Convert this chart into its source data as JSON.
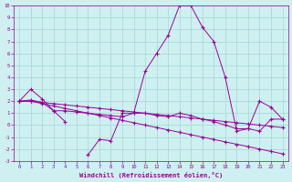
{
  "xlabel": "Windchill (Refroidissement éolien,°C)",
  "x_values": [
    0,
    1,
    2,
    3,
    4,
    5,
    6,
    7,
    8,
    9,
    10,
    11,
    12,
    13,
    14,
    15,
    16,
    17,
    18,
    19,
    20,
    21,
    22,
    23
  ],
  "line1_y": [
    2.0,
    3.0,
    2.2,
    1.2,
    0.3,
    null,
    -2.5,
    -1.2,
    -1.3,
    1.0,
    1.0,
    4.5,
    6.0,
    7.5,
    10.0,
    10.0,
    8.2,
    7.0,
    4.0,
    -0.5,
    -0.3,
    2.0,
    1.5,
    0.5
  ],
  "line2_y": [
    2.0,
    2.1,
    1.9,
    1.2,
    1.2,
    1.1,
    1.0,
    0.9,
    0.8,
    0.7,
    1.0,
    1.0,
    0.8,
    0.7,
    1.0,
    0.8,
    0.5,
    0.3,
    0.0,
    -0.3,
    -0.3,
    -0.5,
    0.5,
    0.5
  ],
  "line3_y": [
    2.0,
    2.0,
    1.8,
    1.6,
    1.4,
    1.2,
    1.0,
    0.8,
    0.6,
    0.4,
    0.2,
    0.0,
    -0.2,
    -0.4,
    -0.6,
    -0.8,
    -1.0,
    -1.2,
    -1.4,
    -1.6,
    -1.8,
    -2.0,
    -2.2,
    -2.4
  ],
  "line4_y": [
    2.0,
    2.0,
    1.9,
    1.8,
    1.7,
    1.6,
    1.5,
    1.4,
    1.3,
    1.2,
    1.1,
    1.0,
    0.9,
    0.8,
    0.7,
    0.6,
    0.5,
    0.4,
    0.3,
    0.2,
    0.1,
    0.0,
    -0.1,
    -0.2
  ],
  "color": "#990099",
  "bg_color": "#cff0f0",
  "grid_color": "#a8dada",
  "ylim": [
    -3,
    10
  ],
  "xlim": [
    -0.5,
    23.5
  ],
  "yticks": [
    -3,
    -2,
    -1,
    0,
    1,
    2,
    3,
    4,
    5,
    6,
    7,
    8,
    9,
    10
  ],
  "xticks": [
    0,
    1,
    2,
    3,
    4,
    5,
    6,
    7,
    8,
    9,
    10,
    11,
    12,
    13,
    14,
    15,
    16,
    17,
    18,
    19,
    20,
    21,
    22,
    23
  ]
}
